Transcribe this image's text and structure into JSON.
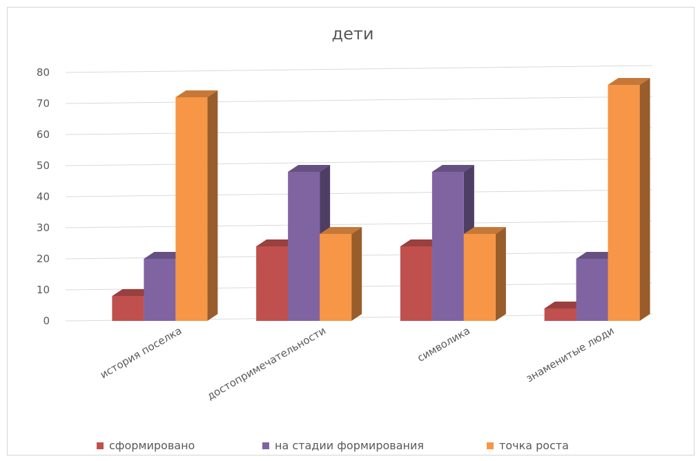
{
  "chart_data": {
    "type": "bar",
    "title": "дети",
    "categories": [
      "история поселка",
      "достопримечательности",
      "символика",
      "знаменитые люди"
    ],
    "series": [
      {
        "name": "сформировано",
        "values": [
          8,
          24,
          24,
          4
        ],
        "color": "#c0504d"
      },
      {
        "name": "на стадии формирования",
        "values": [
          20,
          48,
          48,
          20
        ],
        "color": "#8064a2"
      },
      {
        "name": "точка роста",
        "values": [
          72,
          28,
          28,
          76
        ],
        "color": "#f79646"
      }
    ],
    "ylim": [
      0,
      80
    ],
    "yticks": [
      0,
      10,
      20,
      30,
      40,
      50,
      60,
      70,
      80
    ],
    "grid": true,
    "legend": "bottom",
    "style": "3d-clustered-column"
  }
}
